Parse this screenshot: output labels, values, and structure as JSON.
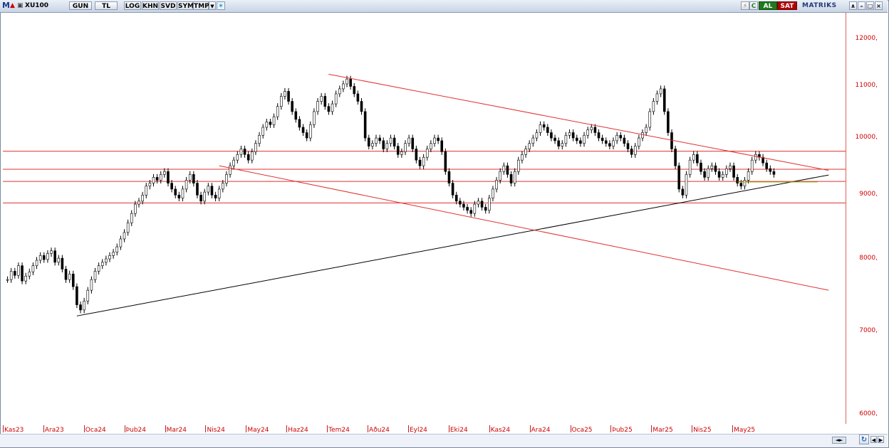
{
  "toolbar": {
    "logo": "M",
    "symbol": "XU100",
    "buttons": [
      "GUN",
      "TL",
      "LOG",
      "KHN",
      "SVD",
      "SYM",
      "TMP"
    ],
    "al_label": "AL",
    "sat_label": "SAT",
    "brand": "MATRIKS",
    "c_label": "C"
  },
  "colors": {
    "accent_red": "#d00000",
    "al_bg": "#1f7a1f",
    "sat_bg": "#b00000",
    "candle": "#000000",
    "trend_red": "#e03030",
    "trend_black": "#000000",
    "trend_olive": "#9aa400"
  },
  "chart_data": {
    "type": "candlestick",
    "y_log_scale": true,
    "ylim": [
      5900,
      12600
    ],
    "y_ticks": [
      "12000,",
      "11000,",
      "10000,",
      "9000,",
      "8000,",
      "7000,",
      "6000,"
    ],
    "y_tick_values": [
      12000,
      11000,
      10000,
      9000,
      8000,
      7000,
      6000
    ],
    "x_ticks": [
      "Kas23",
      "Ara23",
      "Oca24",
      "Þub24",
      "Mar24",
      "Nis24",
      "May24",
      "Haz24",
      "Tem24",
      "Aðu24",
      "Eyl24",
      "Eki24",
      "Kas24",
      "Ara24",
      "Oca25",
      "Þub25",
      "Mar25",
      "Nis25",
      "May25"
    ],
    "closes": [
      7700,
      7820,
      7760,
      7900,
      7680,
      7750,
      7810,
      7900,
      7980,
      8050,
      7990,
      8080,
      8120,
      7950,
      8010,
      7850,
      7700,
      7780,
      7600,
      7350,
      7280,
      7400,
      7550,
      7700,
      7820,
      7900,
      7950,
      8000,
      8050,
      8100,
      8180,
      8300,
      8400,
      8550,
      8700,
      8850,
      8900,
      9000,
      9150,
      9200,
      9300,
      9250,
      9350,
      9400,
      9200,
      9100,
      9000,
      8950,
      9100,
      9250,
      9350,
      9200,
      9000,
      8900,
      9050,
      9150,
      9000,
      8950,
      9100,
      9200,
      9350,
      9500,
      9600,
      9700,
      9800,
      9700,
      9600,
      9750,
      9900,
      10050,
      10200,
      10300,
      10250,
      10400,
      10600,
      10800,
      10900,
      10700,
      10500,
      10350,
      10200,
      10100,
      10000,
      10250,
      10500,
      10700,
      10800,
      10600,
      10500,
      10650,
      10850,
      10950,
      11050,
      11150,
      11000,
      10850,
      10700,
      10500,
      10000,
      9850,
      9900,
      10000,
      9950,
      9800,
      9900,
      10000,
      9850,
      9700,
      9750,
      9900,
      10000,
      9800,
      9600,
      9500,
      9650,
      9800,
      9900,
      10000,
      9950,
      9750,
      9400,
      9200,
      9000,
      8900,
      8850,
      8800,
      8750,
      8700,
      8850,
      8900,
      8800,
      8750,
      8950,
      9100,
      9250,
      9400,
      9500,
      9350,
      9200,
      9400,
      9600,
      9700,
      9800,
      9900,
      10000,
      10100,
      10250,
      10200,
      10100,
      10000,
      9950,
      9850,
      9900,
      10050,
      10100,
      10000,
      9950,
      9900,
      10050,
      10150,
      10200,
      10100,
      10000,
      9950,
      9900,
      9850,
      9950,
      10050,
      10000,
      9900,
      9800,
      9700,
      9850,
      10000,
      10100,
      10200,
      10500,
      10700,
      10850,
      10950,
      10500,
      10100,
      9800,
      9500,
      9100,
      9000,
      9350,
      9600,
      9700,
      9550,
      9400,
      9300,
      9450,
      9500,
      9400,
      9300,
      9350,
      9450,
      9500,
      9300,
      9200,
      9150,
      9250,
      9400,
      9600,
      9700,
      9650,
      9550,
      9450,
      9400,
      9350
    ]
  },
  "nav": {
    "scroll_label": "◄►"
  }
}
